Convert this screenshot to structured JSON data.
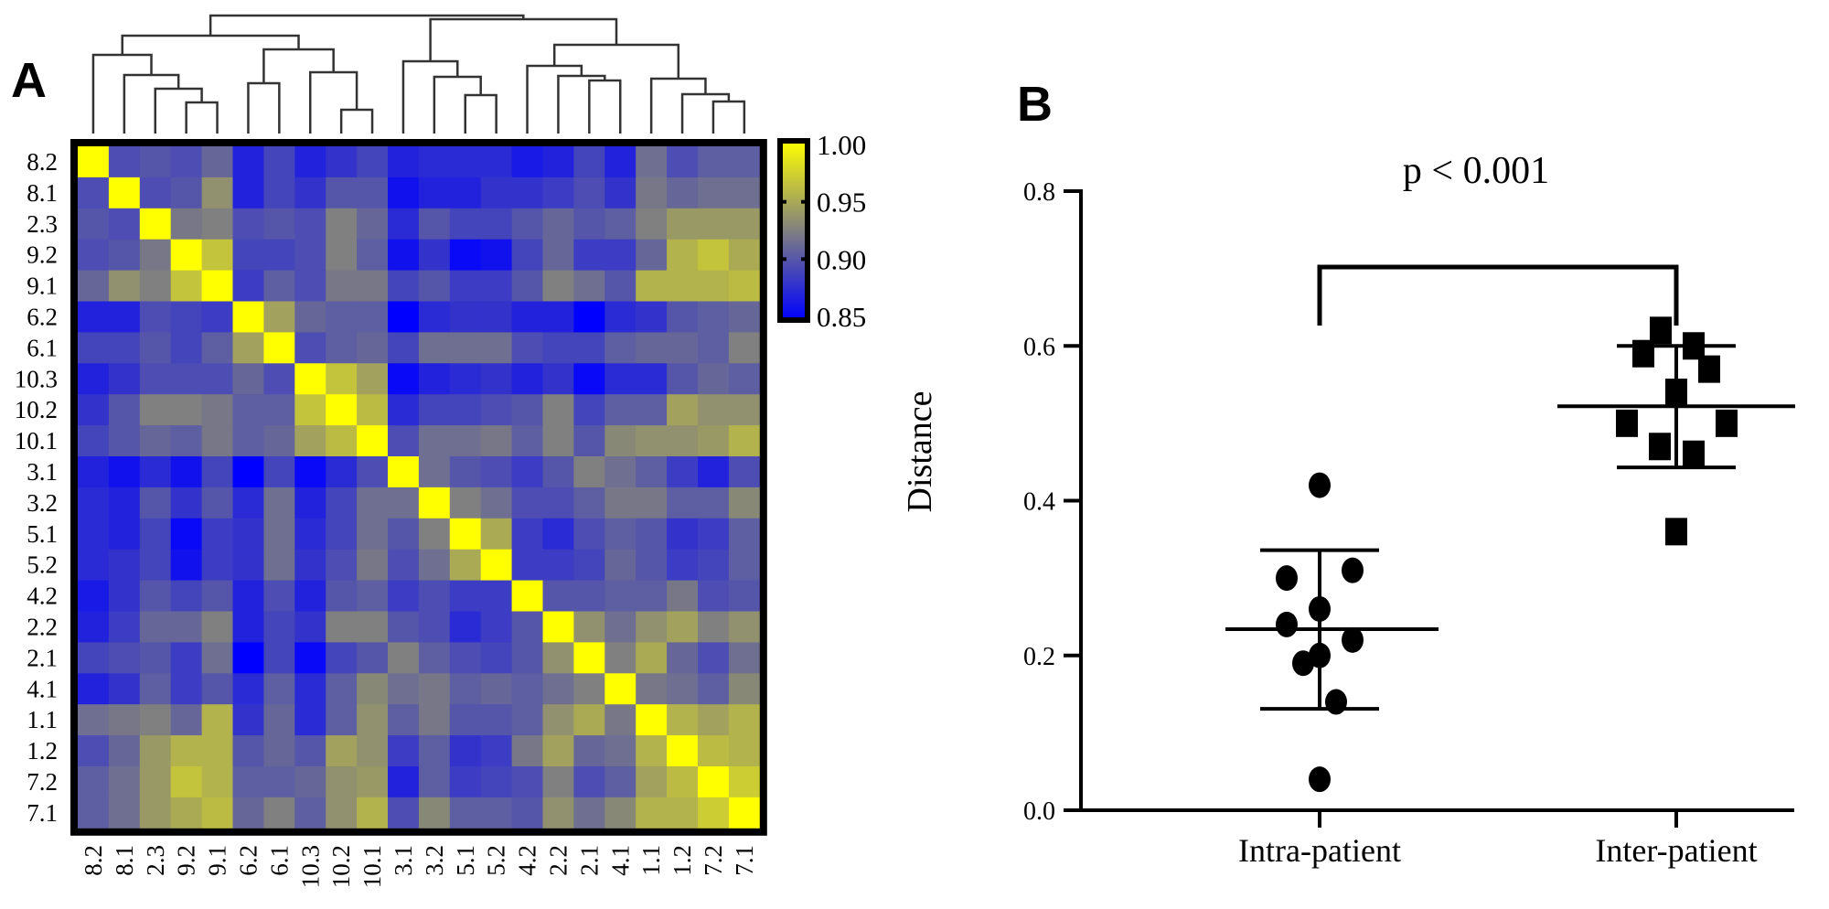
{
  "chart_data": [
    {
      "panel": "A",
      "type": "heatmap",
      "symmetric": true,
      "labels": [
        "8.2",
        "8.1",
        "2.3",
        "9.2",
        "9.1",
        "6.2",
        "6.1",
        "10.3",
        "10.2",
        "10.1",
        "3.1",
        "3.2",
        "5.1",
        "5.2",
        "4.2",
        "2.2",
        "2.1",
        "4.1",
        "1.1",
        "1.2",
        "7.2",
        "7.1"
      ],
      "upper_triangle": [
        [
          1.0,
          0.895,
          0.9,
          0.895,
          0.91,
          0.87,
          0.89,
          0.87,
          0.88,
          0.89,
          0.87,
          0.875,
          0.875,
          0.875,
          0.865,
          0.87,
          0.89,
          0.87,
          0.915,
          0.895,
          0.905,
          0.905
        ],
        [
          1.0,
          0.895,
          0.9,
          0.935,
          0.87,
          0.89,
          0.88,
          0.9,
          0.9,
          0.86,
          0.87,
          0.87,
          0.88,
          0.88,
          0.885,
          0.895,
          0.88,
          0.92,
          0.91,
          0.915,
          0.915
        ],
        [
          1.0,
          0.92,
          0.925,
          0.895,
          0.9,
          0.895,
          0.925,
          0.91,
          0.875,
          0.9,
          0.89,
          0.89,
          0.9,
          0.91,
          0.9,
          0.905,
          0.925,
          0.94,
          0.94,
          0.94
        ],
        [
          1.0,
          0.965,
          0.89,
          0.89,
          0.895,
          0.925,
          0.905,
          0.86,
          0.88,
          0.855,
          0.86,
          0.89,
          0.91,
          0.885,
          0.885,
          0.91,
          0.955,
          0.965,
          0.95
        ],
        [
          1.0,
          0.885,
          0.905,
          0.895,
          0.92,
          0.92,
          0.89,
          0.9,
          0.885,
          0.885,
          0.9,
          0.925,
          0.915,
          0.9,
          0.955,
          0.955,
          0.955,
          0.96
        ],
        [
          1.0,
          0.945,
          0.91,
          0.905,
          0.905,
          0.85,
          0.875,
          0.88,
          0.88,
          0.87,
          0.87,
          0.85,
          0.875,
          0.88,
          0.9,
          0.905,
          0.91
        ],
        [
          1.0,
          0.895,
          0.905,
          0.91,
          0.89,
          0.915,
          0.915,
          0.915,
          0.895,
          0.89,
          0.89,
          0.905,
          0.91,
          0.91,
          0.905,
          0.925
        ],
        [
          1.0,
          0.965,
          0.945,
          0.855,
          0.87,
          0.875,
          0.88,
          0.87,
          0.88,
          0.855,
          0.875,
          0.875,
          0.9,
          0.91,
          0.905
        ],
        [
          1.0,
          0.96,
          0.875,
          0.89,
          0.89,
          0.895,
          0.9,
          0.925,
          0.89,
          0.905,
          0.905,
          0.945,
          0.935,
          0.935
        ],
        [
          1.0,
          0.895,
          0.915,
          0.915,
          0.92,
          0.905,
          0.925,
          0.9,
          0.93,
          0.935,
          0.935,
          0.94,
          0.955
        ],
        [
          1.0,
          0.915,
          0.9,
          0.895,
          0.885,
          0.9,
          0.925,
          0.915,
          0.905,
          0.885,
          0.87,
          0.895
        ],
        [
          1.0,
          0.925,
          0.915,
          0.895,
          0.895,
          0.905,
          0.92,
          0.92,
          0.905,
          0.905,
          0.93
        ],
        [
          1.0,
          0.95,
          0.885,
          0.875,
          0.895,
          0.905,
          0.9,
          0.88,
          0.885,
          0.905
        ],
        [
          1.0,
          0.885,
          0.885,
          0.89,
          0.91,
          0.9,
          0.885,
          0.89,
          0.905
        ],
        [
          1.0,
          0.9,
          0.9,
          0.905,
          0.905,
          0.92,
          0.895,
          0.9
        ],
        [
          1.0,
          0.935,
          0.915,
          0.935,
          0.945,
          0.925,
          0.935
        ],
        [
          1.0,
          0.925,
          0.95,
          0.91,
          0.895,
          0.915
        ],
        [
          1.0,
          0.92,
          0.915,
          0.905,
          0.93
        ],
        [
          1.0,
          0.955,
          0.945,
          0.955
        ],
        [
          1.0,
          0.96,
          0.955
        ],
        [
          1.0,
          0.97
        ],
        [
          1.0
        ]
      ],
      "colorscale": {
        "range": [
          0.85,
          1.0
        ],
        "colors": [
          "#0000ff",
          "#808080",
          "#ffff00"
        ],
        "tick_labels": [
          "1.00",
          "0.95",
          "0.90",
          "0.85"
        ]
      },
      "dendrogram": [
        [
          [
            "8.2",
            [
              "8.1",
              [
                "2.3",
                [
                  "9.2",
                  "9.1"
                ]
              ]
            ]
          ],
          [
            [
              "6.2",
              "6.1"
            ],
            [
              "10.3",
              [
                "10.2",
                "10.1"
              ]
            ]
          ]
        ],
        [
          [
            "3.1",
            [
              "3.2",
              [
                "5.1",
                "5.2"
              ]
            ]
          ],
          [
            [
              "4.2",
              [
                "2.2",
                [
                  "2.1",
                  "4.1"
                ]
              ]
            ],
            [
              "1.1",
              [
                "1.2",
                [
                  "7.2",
                  "7.1"
                ]
              ]
            ]
          ]
        ]
      ]
    },
    {
      "panel": "B",
      "type": "scatter",
      "ylabel": "Distance",
      "ylim": [
        0.0,
        0.8
      ],
      "yticks": [
        "0.0",
        "0.2",
        "0.4",
        "0.6",
        "0.8"
      ],
      "categories": [
        "Intra-patient",
        "Inter-patient"
      ],
      "series": [
        {
          "category": "Intra-patient",
          "marker": "circle",
          "values": [
            0.42,
            0.3,
            0.31,
            0.26,
            0.24,
            0.22,
            0.2,
            0.19,
            0.14,
            0.04
          ],
          "mean": 0.234,
          "error_low": 0.131,
          "error_high": 0.336
        },
        {
          "category": "Inter-patient",
          "marker": "square",
          "values": [
            0.62,
            0.59,
            0.6,
            0.57,
            0.54,
            0.5,
            0.5,
            0.47,
            0.46,
            0.36
          ],
          "mean": 0.522,
          "error_low": 0.443,
          "error_high": 0.6
        }
      ],
      "annotation": "p < 0.001"
    }
  ],
  "panels": {
    "a_label": "A",
    "b_label": "B"
  }
}
